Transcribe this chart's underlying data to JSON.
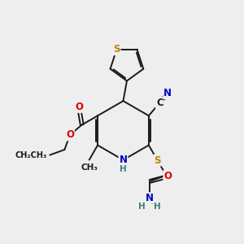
{
  "background_color": "#eeeeee",
  "bond_color": "#1a1a1a",
  "atom_colors": {
    "S": "#b8860b",
    "O": "#dd0000",
    "N": "#0000cc",
    "C": "#1a1a1a",
    "H": "#3a8080"
  },
  "figsize": [
    3.0,
    3.0
  ],
  "dpi": 100,
  "lw": 1.4,
  "fs": 8.5,
  "fs_small": 7.5
}
